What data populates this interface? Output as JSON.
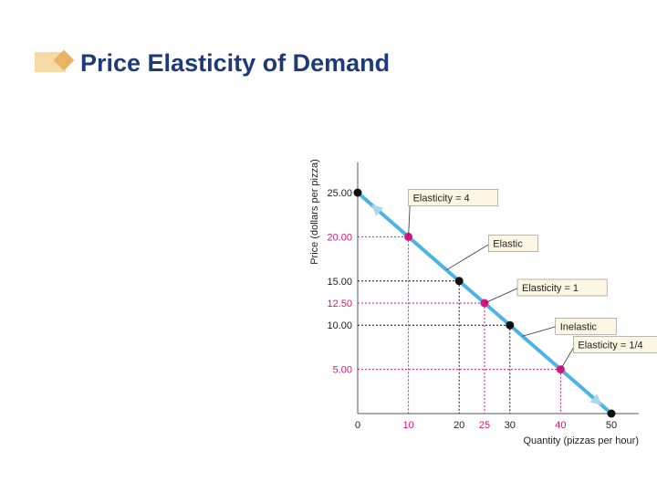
{
  "title": "Price Elasticity of Demand",
  "chart_data": {
    "type": "line",
    "xlabel": "Quantity (pizzas per hour)",
    "ylabel": "Price (dollars per pizza)",
    "xlim": [
      0,
      50
    ],
    "ylim": [
      0,
      25
    ],
    "x_ticks": [
      {
        "value": 0,
        "label": "0",
        "color": "#222222"
      },
      {
        "value": 10,
        "label": "10",
        "color": "#d6157f"
      },
      {
        "value": 20,
        "label": "20",
        "color": "#222222"
      },
      {
        "value": 25,
        "label": "25",
        "color": "#d6157f"
      },
      {
        "value": 30,
        "label": "30",
        "color": "#222222"
      },
      {
        "value": 40,
        "label": "40",
        "color": "#d6157f"
      },
      {
        "value": 50,
        "label": "50",
        "color": "#222222"
      }
    ],
    "y_ticks": [
      {
        "value": 25,
        "label": "25.00",
        "color": "#222222"
      },
      {
        "value": 20,
        "label": "20.00",
        "color": "#d6157f"
      },
      {
        "value": 15,
        "label": "15.00",
        "color": "#222222"
      },
      {
        "value": 12.5,
        "label": "12.50",
        "color": "#d6157f"
      },
      {
        "value": 10,
        "label": "10.00",
        "color": "#222222"
      },
      {
        "value": 5,
        "label": "5.00",
        "color": "#d6157f"
      }
    ],
    "series": [
      {
        "x": [
          0,
          50
        ],
        "y": [
          25,
          0
        ],
        "color": "#4bb3e6"
      }
    ],
    "points": [
      {
        "x": 0,
        "y": 25,
        "color": "#111111"
      },
      {
        "x": 10,
        "y": 20,
        "color": "#d6157f"
      },
      {
        "x": 20,
        "y": 15,
        "color": "#111111"
      },
      {
        "x": 25,
        "y": 12.5,
        "color": "#d6157f"
      },
      {
        "x": 30,
        "y": 10,
        "color": "#111111"
      },
      {
        "x": 40,
        "y": 5,
        "color": "#d6157f"
      },
      {
        "x": 50,
        "y": 0,
        "color": "#111111"
      }
    ],
    "annotations": [
      {
        "text": "Elasticity = 4",
        "x": 10,
        "y": 20
      },
      {
        "text": "Elastic",
        "x": 17.5,
        "y": 16.25
      },
      {
        "text": "Elasticity = 1",
        "x": 25,
        "y": 12.5
      },
      {
        "text": "Inelastic",
        "x": 32.5,
        "y": 8.75
      },
      {
        "text": "Elasticity = 1/4",
        "x": 40,
        "y": 5
      }
    ],
    "colors": {
      "line": "#4bb3e6",
      "highlight": "#d6157f",
      "axis": "#555555",
      "callout_bg": "#fdf6e3"
    }
  }
}
